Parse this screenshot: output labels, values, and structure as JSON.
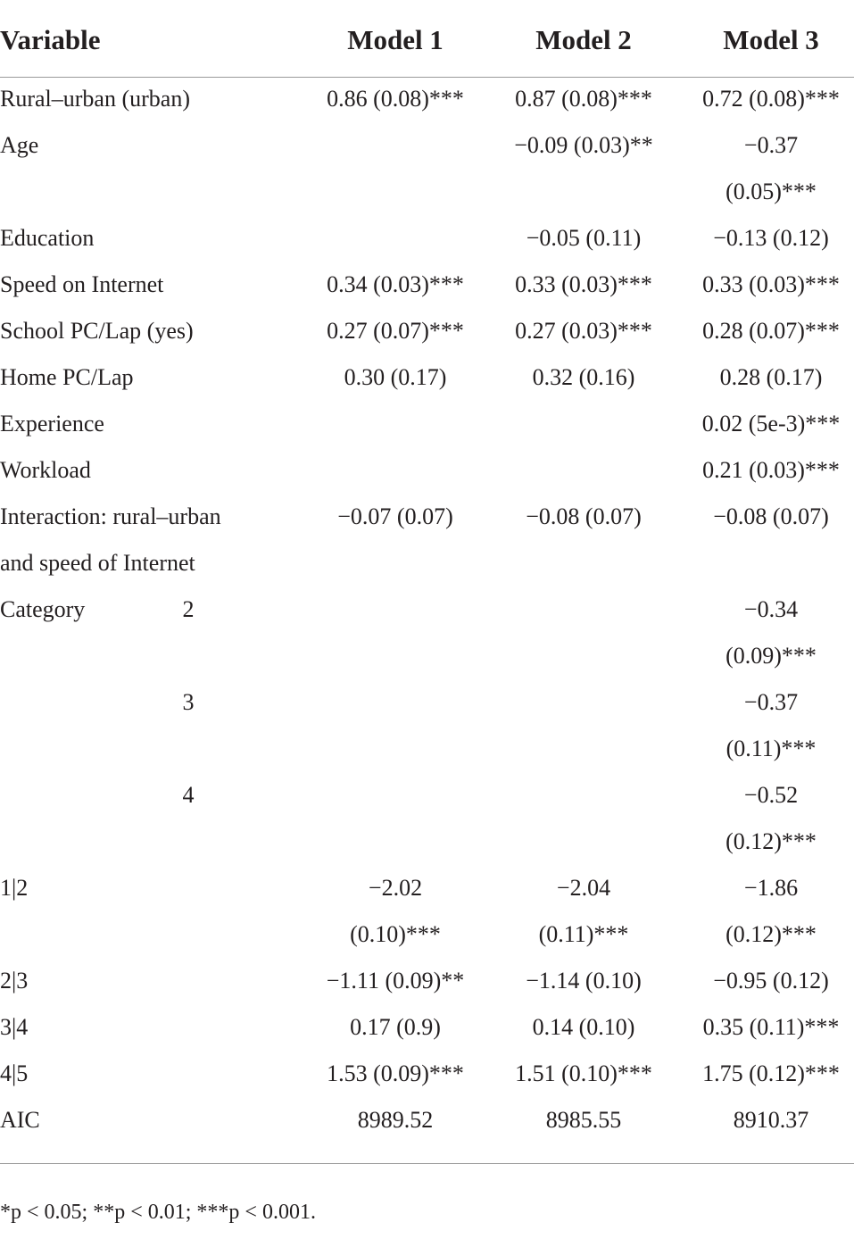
{
  "table": {
    "headers": [
      "Variable",
      "Model 1",
      "Model 2",
      "Model 3"
    ],
    "rows": [
      {
        "variable": "Rural–urban (urban)",
        "values": [
          "0.86 (0.08)***",
          "0.87 (0.08)***",
          "0.72 (0.08)***"
        ]
      },
      {
        "variable": "Age",
        "values": [
          null,
          "−0.09 (0.03)**",
          [
            "−0.37",
            "(0.05)***"
          ]
        ]
      },
      {
        "variable": "Education",
        "values": [
          null,
          "−0.05 (0.11)",
          "−0.13 (0.12)"
        ]
      },
      {
        "variable": "Speed on Internet",
        "values": [
          "0.34 (0.03)***",
          "0.33 (0.03)***",
          "0.33 (0.03)***"
        ]
      },
      {
        "variable": "School PC/Lap (yes)",
        "values": [
          "0.27 (0.07)***",
          "0.27 (0.03)***",
          "0.28 (0.07)***"
        ]
      },
      {
        "variable": "Home PC/Lap",
        "values": [
          "0.30 (0.17)",
          "0.32 (0.16)",
          "0.28 (0.17)"
        ]
      },
      {
        "variable": "Experience",
        "values": [
          null,
          null,
          "0.02 (5e-3)***"
        ]
      },
      {
        "variable": "Workload",
        "values": [
          null,
          null,
          "0.21 (0.03)***"
        ]
      },
      {
        "variable": [
          "Interaction: rural–urban",
          "and speed of Internet"
        ],
        "values": [
          "−0.07 (0.07)",
          "−0.08 (0.07)",
          "−0.08 (0.07)"
        ]
      },
      {
        "variable": "Category",
        "level": "2",
        "values": [
          null,
          null,
          [
            "−0.34",
            "(0.09)***"
          ]
        ]
      },
      {
        "variable": null,
        "level": "3",
        "values": [
          null,
          null,
          [
            "−0.37",
            "(0.11)***"
          ]
        ]
      },
      {
        "variable": null,
        "level": "4",
        "values": [
          null,
          null,
          [
            "−0.52",
            "(0.12)***"
          ]
        ]
      },
      {
        "variable": "1|2",
        "values": [
          [
            "−2.02",
            "(0.10)***"
          ],
          [
            "−2.04",
            "(0.11)***"
          ],
          [
            "−1.86",
            "(0.12)***"
          ]
        ]
      },
      {
        "variable": "2|3",
        "values": [
          "−1.11 (0.09)**",
          "−1.14 (0.10)",
          "−0.95 (0.12)"
        ]
      },
      {
        "variable": "3|4",
        "values": [
          "0.17 (0.9)",
          "0.14 (0.10)",
          "0.35 (0.11)***"
        ]
      },
      {
        "variable": "4|5",
        "values": [
          "1.53 (0.09)***",
          "1.51 (0.10)***",
          "1.75 (0.12)***"
        ]
      },
      {
        "variable": "AIC",
        "values": [
          "8989.52",
          "8985.55",
          "8910.37"
        ]
      }
    ],
    "footnote": "*p < 0.05; **p < 0.01; ***p < 0.001."
  }
}
